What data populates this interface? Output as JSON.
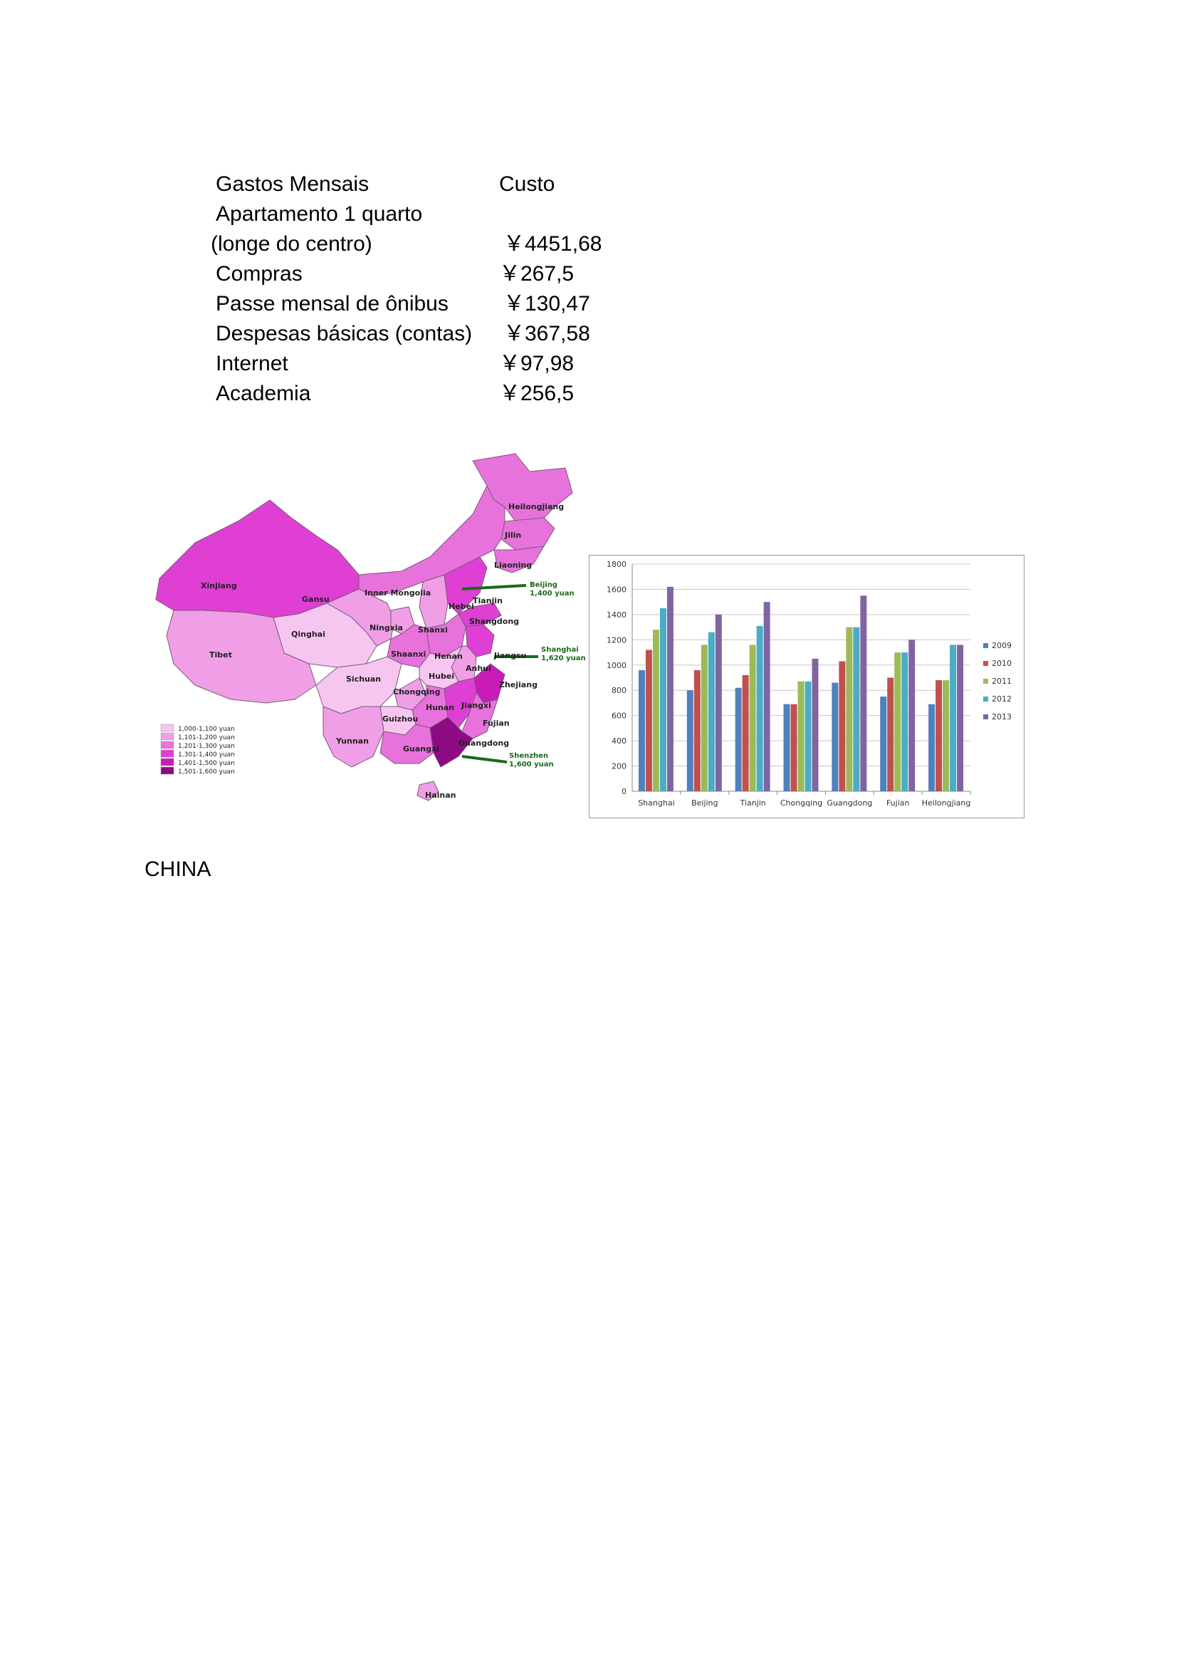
{
  "table": {
    "header": {
      "label": "Gastos Mensais",
      "value": "Custo"
    },
    "rows": [
      {
        "label": "Apartamento 1 quarto",
        "value": ""
      },
      {
        "label": "(longe do centro)",
        "value": "￥4451,68"
      },
      {
        "label": "Compras",
        "value": "￥267,5"
      },
      {
        "label": "Passe mensal de ônibus",
        "value": "￥130,47"
      },
      {
        "label": "Despesas básicas (contas)",
        "value": "￥367,58"
      },
      {
        "label": "Internet",
        "value": "￥97,98"
      },
      {
        "label": "Academia",
        "value": "￥256,5"
      }
    ]
  },
  "map": {
    "provinces": [
      "Heilongjiang",
      "Jilin",
      "Liaoning",
      "Xinjiang",
      "Inner Mongolia",
      "Gansu",
      "Ningxia",
      "Hebei",
      "Tianjin",
      "Shanxi",
      "Shangdong",
      "Qinghai",
      "Tibet",
      "Shaanxi",
      "Henan",
      "Jiangsu",
      "Anhui",
      "Sichuan",
      "Hubei",
      "Zhejiang",
      "Chongqing",
      "Hunan",
      "Jiangxi",
      "Guizhou",
      "Fujian",
      "Yunnan",
      "Guangxi",
      "Guangdong",
      "Hainan"
    ],
    "callouts": [
      {
        "city": "Beijing",
        "value": "1,400 yuan"
      },
      {
        "city": "Shanghai",
        "value": "1,620 yuan"
      },
      {
        "city": "Shenzhen",
        "value": "1,600 yuan"
      }
    ],
    "legend": [
      {
        "label": "1,000-1,100 yuan",
        "color": "#f6c6f0"
      },
      {
        "label": "1,101-1,200 yuan",
        "color": "#f09ee6"
      },
      {
        "label": "1,201-1,300 yuan",
        "color": "#e872dc"
      },
      {
        "label": "1,301-1,400 yuan",
        "color": "#df3fd3"
      },
      {
        "label": "1,401-1,500 yuan",
        "color": "#c81bb8"
      },
      {
        "label": "1,501-1,600 yuan",
        "color": "#8d0a83"
      }
    ]
  },
  "chart_data": {
    "type": "bar",
    "categories": [
      "Shanghai",
      "Beijing",
      "Tianjin",
      "Chongqing",
      "Guangdong",
      "Fujian",
      "Heilongjiang"
    ],
    "series": [
      {
        "name": "2009",
        "color": "#4f81bd",
        "values": [
          960,
          800,
          820,
          690,
          860,
          750,
          690
        ]
      },
      {
        "name": "2010",
        "color": "#c0504d",
        "values": [
          1120,
          960,
          920,
          690,
          1030,
          900,
          880
        ]
      },
      {
        "name": "2011",
        "color": "#9bbb59",
        "values": [
          1280,
          1160,
          1160,
          870,
          1300,
          1100,
          880
        ]
      },
      {
        "name": "2012",
        "color": "#4bacc6",
        "values": [
          1450,
          1260,
          1310,
          870,
          1300,
          1100,
          1160
        ]
      },
      {
        "name": "2013",
        "color": "#8064a2",
        "values": [
          1620,
          1400,
          1500,
          1050,
          1550,
          1200,
          1160
        ]
      }
    ],
    "ylim": [
      0,
      1800
    ],
    "yticks": [
      0,
      200,
      400,
      600,
      800,
      1000,
      1200,
      1400,
      1600,
      1800
    ],
    "grid": true,
    "legend_position": "right"
  },
  "caption": "CHINA"
}
